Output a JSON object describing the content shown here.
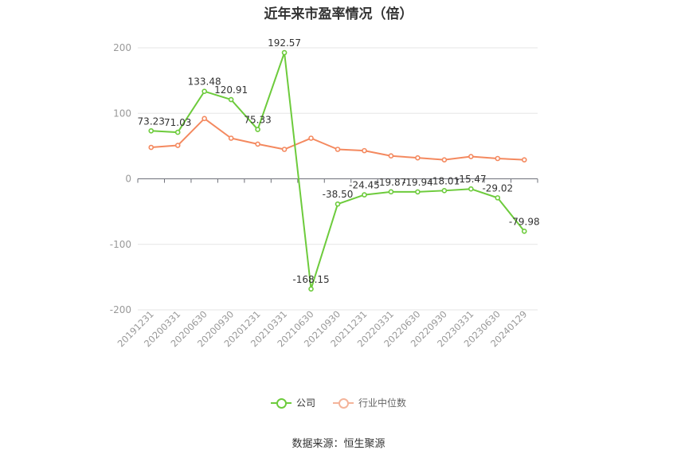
{
  "chart_data": {
    "type": "line",
    "title": "近年来市盈率情况（倍）",
    "x": [
      "20191231",
      "20200331",
      "20200630",
      "20200930",
      "20201231",
      "20210331",
      "20210630",
      "20210930",
      "20211231",
      "20220331",
      "20220630",
      "20220930",
      "20230331",
      "20230630",
      "20240129"
    ],
    "series": [
      {
        "name": "公司",
        "color": "#6dcb3c",
        "values": [
          73.23,
          71.03,
          133.48,
          120.91,
          75.33,
          192.57,
          -168.15,
          -38.5,
          -24.45,
          -19.87,
          -19.94,
          -18.01,
          -15.47,
          -29.02,
          -79.98
        ],
        "labels": [
          "73.23",
          "71.03",
          "133.48",
          "120.91",
          "75.33",
          "192.57",
          "-168.15",
          "-38.50",
          "-24.45",
          "-19.87",
          "-19.94",
          "-18.01",
          "-15.47",
          "-29.02",
          "-79.98"
        ]
      },
      {
        "name": "行业中位数",
        "color": "#f4895f",
        "values": [
          48,
          51,
          92,
          62,
          53,
          45,
          62,
          45,
          43,
          35,
          32,
          29,
          34,
          31,
          29
        ]
      }
    ],
    "ylim": [
      -200,
      200
    ],
    "yticks": [
      "200",
      "100",
      "0",
      "-100",
      "-200"
    ],
    "grid": true,
    "legend_position": "bottom"
  },
  "source": "数据来源：恒生聚源"
}
